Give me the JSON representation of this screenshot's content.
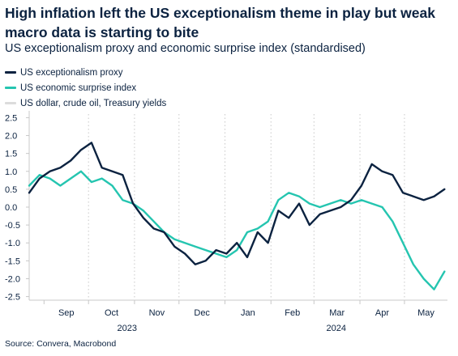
{
  "title": "High inflation left the US exceptionalism theme in play but weak macro data is starting to bite",
  "subtitle": "US exceptionalism proxy and economic surprise index (standardised)",
  "source": "Source: Convera, Macrobond",
  "colors": {
    "proxy": "#0b2240",
    "surprise": "#25c5b0",
    "grey": "#dcdcdc",
    "grid": "#c8c8c8",
    "text": "#0b2240"
  },
  "legend": [
    {
      "label": "US exceptionalism proxy",
      "color": "#0b2240"
    },
    {
      "label": "US economic surprise index",
      "color": "#25c5b0"
    },
    {
      "label": "US dollar, crude oil, Treasury yields",
      "color": "#dcdcdc"
    }
  ],
  "chart_data": {
    "type": "line",
    "x_start": "2023-08-22",
    "x_end": "2024-05-30",
    "ylim": [
      -2.6,
      2.6
    ],
    "y_ticks": [
      2.5,
      2.0,
      1.5,
      1.0,
      0.5,
      0.0,
      -0.5,
      -1.0,
      -1.5,
      -2.0,
      -2.5
    ],
    "y_tick_labels": [
      "2.5",
      "2.0",
      "1.5",
      "1.0",
      "0.5",
      "0.0",
      "-0.5",
      "-1.0",
      "-1.5",
      "-2.0",
      "-2.5"
    ],
    "month_ticks": [
      "Sep",
      "Oct",
      "Nov",
      "Dec",
      "Jan",
      "Feb",
      "Mar",
      "Apr",
      "May"
    ],
    "year_labels": [
      "2023",
      "2024"
    ],
    "series": [
      {
        "name": "US exceptionalism proxy",
        "color": "#0b2240",
        "x": [
          "2023-08-22",
          "2023-08-29",
          "2023-09-05",
          "2023-09-12",
          "2023-09-19",
          "2023-09-26",
          "2023-10-03",
          "2023-10-10",
          "2023-10-17",
          "2023-10-24",
          "2023-10-31",
          "2023-11-07",
          "2023-11-14",
          "2023-11-21",
          "2023-11-28",
          "2023-12-05",
          "2023-12-12",
          "2023-12-19",
          "2023-12-26",
          "2024-01-02",
          "2024-01-09",
          "2024-01-16",
          "2024-01-23",
          "2024-01-30",
          "2024-02-06",
          "2024-02-13",
          "2024-02-20",
          "2024-02-27",
          "2024-03-05",
          "2024-03-12",
          "2024-03-19",
          "2024-03-26",
          "2024-04-02",
          "2024-04-09",
          "2024-04-16",
          "2024-04-23",
          "2024-04-30",
          "2024-05-07",
          "2024-05-14",
          "2024-05-21",
          "2024-05-28"
        ],
        "values": [
          0.4,
          0.8,
          1.0,
          1.1,
          1.3,
          1.6,
          1.8,
          1.1,
          1.0,
          0.9,
          0.1,
          -0.3,
          -0.6,
          -0.7,
          -1.1,
          -1.3,
          -1.6,
          -1.5,
          -1.2,
          -1.3,
          -1.0,
          -1.4,
          -0.7,
          -1.0,
          -0.1,
          -0.3,
          0.1,
          -0.5,
          -0.2,
          -0.1,
          0.0,
          0.2,
          0.6,
          1.2,
          1.0,
          0.9,
          0.4,
          0.3,
          0.2,
          0.3,
          0.5
        ]
      },
      {
        "name": "US economic surprise index",
        "color": "#25c5b0",
        "x": [
          "2023-08-22",
          "2023-08-29",
          "2023-09-05",
          "2023-09-12",
          "2023-09-19",
          "2023-09-26",
          "2023-10-03",
          "2023-10-10",
          "2023-10-17",
          "2023-10-24",
          "2023-10-31",
          "2023-11-07",
          "2023-11-14",
          "2023-11-21",
          "2023-11-28",
          "2023-12-05",
          "2023-12-12",
          "2023-12-19",
          "2023-12-26",
          "2024-01-02",
          "2024-01-09",
          "2024-01-16",
          "2024-01-23",
          "2024-01-30",
          "2024-02-06",
          "2024-02-13",
          "2024-02-20",
          "2024-02-27",
          "2024-03-05",
          "2024-03-12",
          "2024-03-19",
          "2024-03-26",
          "2024-04-02",
          "2024-04-09",
          "2024-04-16",
          "2024-04-23",
          "2024-04-30",
          "2024-05-07",
          "2024-05-14",
          "2024-05-21",
          "2024-05-28"
        ],
        "values": [
          0.6,
          0.9,
          0.8,
          0.6,
          0.8,
          1.0,
          0.7,
          0.8,
          0.6,
          0.2,
          0.1,
          -0.1,
          -0.4,
          -0.7,
          -0.9,
          -1.0,
          -1.1,
          -1.2,
          -1.3,
          -1.4,
          -1.2,
          -0.7,
          -0.6,
          -0.4,
          0.2,
          0.4,
          0.3,
          0.1,
          0.0,
          0.1,
          0.2,
          0.1,
          0.2,
          0.1,
          0.0,
          -0.4,
          -1.0,
          -1.6,
          -2.0,
          -2.3,
          -1.8
        ]
      }
    ]
  }
}
